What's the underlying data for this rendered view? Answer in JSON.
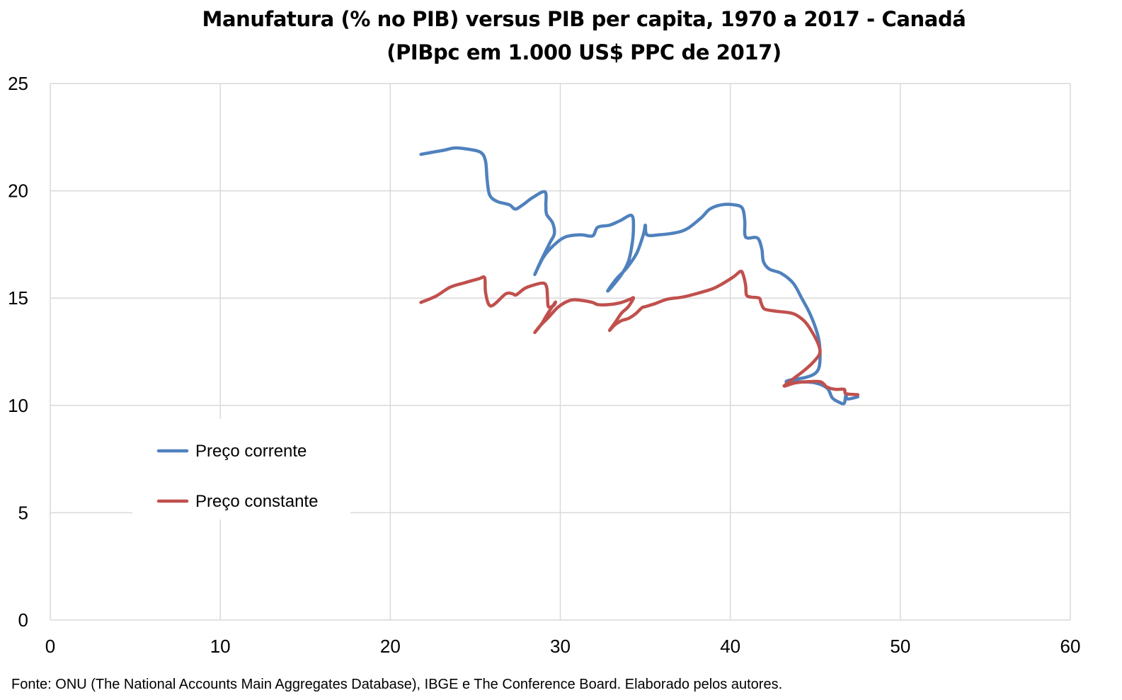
{
  "chart_data": {
    "type": "line",
    "title": "Manufatura (% no PIB) versus PIB per capita, 1970 a 2017 - Canadá",
    "subtitle": "(PIBpc em 1.000 US$ PPC de 2017)",
    "xlabel": "",
    "ylabel": "",
    "xlim": [
      0,
      60
    ],
    "ylim": [
      0,
      25
    ],
    "x_ticks": [
      "0",
      "10",
      "20",
      "30",
      "40",
      "50",
      "60"
    ],
    "y_ticks": [
      "0",
      "5",
      "10",
      "15",
      "20",
      "25"
    ],
    "grid": true,
    "legend_position": "left-middle",
    "series": [
      {
        "name": "Preço corrente",
        "color": "#4f81bd",
        "points": [
          [
            21.8,
            21.7
          ],
          [
            22.5,
            21.8
          ],
          [
            23.2,
            21.9
          ],
          [
            23.8,
            22.0
          ],
          [
            24.5,
            21.95
          ],
          [
            25.3,
            21.8
          ],
          [
            25.6,
            21.4
          ],
          [
            25.7,
            20.5
          ],
          [
            25.85,
            19.8
          ],
          [
            26.3,
            19.5
          ],
          [
            27.0,
            19.35
          ],
          [
            27.35,
            19.15
          ],
          [
            27.8,
            19.35
          ],
          [
            28.4,
            19.7
          ],
          [
            29.1,
            19.95
          ],
          [
            29.15,
            19.3
          ],
          [
            29.2,
            18.9
          ],
          [
            29.55,
            18.5
          ],
          [
            29.65,
            18.0
          ],
          [
            29.4,
            17.6
          ],
          [
            28.9,
            16.8
          ],
          [
            28.5,
            16.1
          ],
          [
            29.0,
            16.9
          ],
          [
            29.6,
            17.45
          ],
          [
            30.3,
            17.85
          ],
          [
            31.2,
            17.95
          ],
          [
            31.9,
            17.9
          ],
          [
            32.2,
            18.3
          ],
          [
            32.9,
            18.4
          ],
          [
            33.5,
            18.6
          ],
          [
            34.2,
            18.85
          ],
          [
            34.3,
            18.2
          ],
          [
            34.2,
            17.4
          ],
          [
            34.0,
            16.7
          ],
          [
            33.6,
            16.1
          ],
          [
            33.0,
            15.5
          ],
          [
            32.8,
            15.35
          ],
          [
            33.3,
            15.9
          ],
          [
            33.9,
            16.4
          ],
          [
            34.5,
            17.1
          ],
          [
            34.9,
            18.0
          ],
          [
            35.0,
            18.4
          ],
          [
            35.1,
            17.95
          ],
          [
            35.8,
            17.95
          ],
          [
            36.8,
            18.05
          ],
          [
            37.5,
            18.25
          ],
          [
            38.3,
            18.75
          ],
          [
            38.8,
            19.15
          ],
          [
            39.5,
            19.35
          ],
          [
            40.2,
            19.35
          ],
          [
            40.7,
            19.2
          ],
          [
            40.85,
            18.6
          ],
          [
            40.85,
            18.0
          ],
          [
            41.0,
            17.8
          ],
          [
            41.6,
            17.8
          ],
          [
            41.85,
            17.3
          ],
          [
            41.95,
            16.7
          ],
          [
            42.3,
            16.35
          ],
          [
            43.0,
            16.15
          ],
          [
            43.7,
            15.7
          ],
          [
            44.2,
            15.0
          ],
          [
            44.7,
            14.25
          ],
          [
            45.1,
            13.4
          ],
          [
            45.25,
            12.8
          ],
          [
            45.25,
            11.9
          ],
          [
            45.0,
            11.5
          ],
          [
            44.4,
            11.3
          ],
          [
            43.6,
            11.2
          ],
          [
            43.3,
            11.1
          ],
          [
            44.0,
            11.1
          ],
          [
            45.0,
            11.05
          ],
          [
            45.7,
            10.8
          ],
          [
            46.0,
            10.35
          ],
          [
            46.4,
            10.15
          ],
          [
            46.7,
            10.1
          ],
          [
            46.8,
            10.5
          ],
          [
            46.9,
            10.3
          ],
          [
            47.5,
            10.4
          ]
        ]
      },
      {
        "name": "Preço constante",
        "color": "#c0504d",
        "points": [
          [
            21.8,
            14.8
          ],
          [
            22.7,
            15.1
          ],
          [
            23.5,
            15.5
          ],
          [
            24.3,
            15.7
          ],
          [
            25.2,
            15.9
          ],
          [
            25.55,
            15.95
          ],
          [
            25.6,
            15.3
          ],
          [
            25.8,
            14.7
          ],
          [
            26.1,
            14.7
          ],
          [
            26.8,
            15.2
          ],
          [
            27.2,
            15.2
          ],
          [
            27.4,
            15.15
          ],
          [
            27.9,
            15.45
          ],
          [
            28.4,
            15.6
          ],
          [
            29.0,
            15.7
          ],
          [
            29.2,
            15.5
          ],
          [
            29.25,
            15.0
          ],
          [
            29.3,
            14.6
          ],
          [
            29.6,
            14.65
          ],
          [
            29.7,
            14.8
          ],
          [
            29.2,
            14.2
          ],
          [
            28.9,
            13.8
          ],
          [
            28.5,
            13.4
          ],
          [
            28.8,
            13.7
          ],
          [
            29.3,
            14.1
          ],
          [
            29.9,
            14.6
          ],
          [
            30.6,
            14.9
          ],
          [
            31.2,
            14.9
          ],
          [
            31.9,
            14.8
          ],
          [
            32.2,
            14.7
          ],
          [
            32.9,
            14.7
          ],
          [
            33.6,
            14.8
          ],
          [
            34.1,
            14.95
          ],
          [
            34.3,
            15.0
          ],
          [
            34.0,
            14.6
          ],
          [
            33.6,
            14.3
          ],
          [
            33.3,
            13.95
          ],
          [
            32.9,
            13.5
          ],
          [
            33.2,
            13.75
          ],
          [
            33.6,
            13.95
          ],
          [
            34.0,
            14.05
          ],
          [
            34.4,
            14.25
          ],
          [
            34.8,
            14.55
          ],
          [
            35.0,
            14.6
          ],
          [
            35.6,
            14.75
          ],
          [
            36.3,
            14.95
          ],
          [
            37.2,
            15.05
          ],
          [
            38.2,
            15.25
          ],
          [
            39.0,
            15.45
          ],
          [
            39.6,
            15.7
          ],
          [
            40.2,
            16.0
          ],
          [
            40.6,
            16.25
          ],
          [
            40.75,
            16.1
          ],
          [
            40.9,
            15.6
          ],
          [
            40.95,
            15.15
          ],
          [
            41.2,
            15.05
          ],
          [
            41.7,
            15.0
          ],
          [
            41.8,
            14.8
          ],
          [
            42.0,
            14.5
          ],
          [
            42.6,
            14.4
          ],
          [
            43.6,
            14.3
          ],
          [
            44.1,
            14.1
          ],
          [
            44.5,
            13.8
          ],
          [
            44.9,
            13.3
          ],
          [
            45.2,
            12.8
          ],
          [
            45.25,
            12.4
          ],
          [
            44.8,
            11.95
          ],
          [
            44.3,
            11.6
          ],
          [
            43.8,
            11.3
          ],
          [
            43.3,
            11.0
          ],
          [
            43.2,
            10.9
          ],
          [
            43.8,
            11.05
          ],
          [
            44.5,
            11.1
          ],
          [
            45.3,
            11.1
          ],
          [
            45.7,
            10.85
          ],
          [
            46.2,
            10.75
          ],
          [
            46.7,
            10.75
          ],
          [
            46.8,
            10.55
          ],
          [
            47.5,
            10.5
          ]
        ]
      }
    ]
  },
  "source_note": "Fonte: ONU (The National Accounts Main Aggregates Database), IBGE e The Conference Board. Elaborado pelos autores."
}
